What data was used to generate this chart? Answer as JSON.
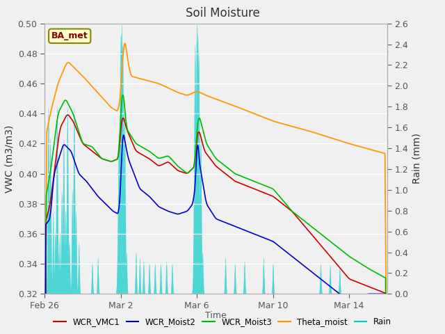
{
  "title": "Soil Moisture",
  "ylabel_left": "VWC (m3/m3)",
  "ylabel_right": "Rain (mm)",
  "xlabel": "Time",
  "ylim_left": [
    0.32,
    0.5
  ],
  "ylim_right": [
    0.0,
    2.6
  ],
  "bg_color": "#f0f0f0",
  "plot_bg_color": "#e8e8e8",
  "legend_colors": [
    "#cc0000",
    "#0000cc",
    "#00bb00",
    "#ff9900",
    "#00cccc"
  ],
  "legend_labels": [
    "WCR_VMC1",
    "WCR_Moist2",
    "WCR_Moist3",
    "Theta_moist",
    "Rain"
  ],
  "BA_met_label": "BA_met",
  "yticks_left": [
    0.32,
    0.34,
    0.36,
    0.38,
    0.4,
    0.42,
    0.44,
    0.46,
    0.48,
    0.5
  ],
  "yticks_right": [
    0.0,
    0.2,
    0.4,
    0.6,
    0.8,
    1.0,
    1.2,
    1.4,
    1.6,
    1.8,
    2.0,
    2.2,
    2.4,
    2.6
  ],
  "xtick_labels": [
    "Feb 26",
    "Mar 2",
    "Mar 6",
    "Mar 10",
    "Mar 14"
  ],
  "xtick_positions": [
    0,
    4,
    8,
    12,
    16
  ],
  "xlim": [
    0,
    18
  ]
}
